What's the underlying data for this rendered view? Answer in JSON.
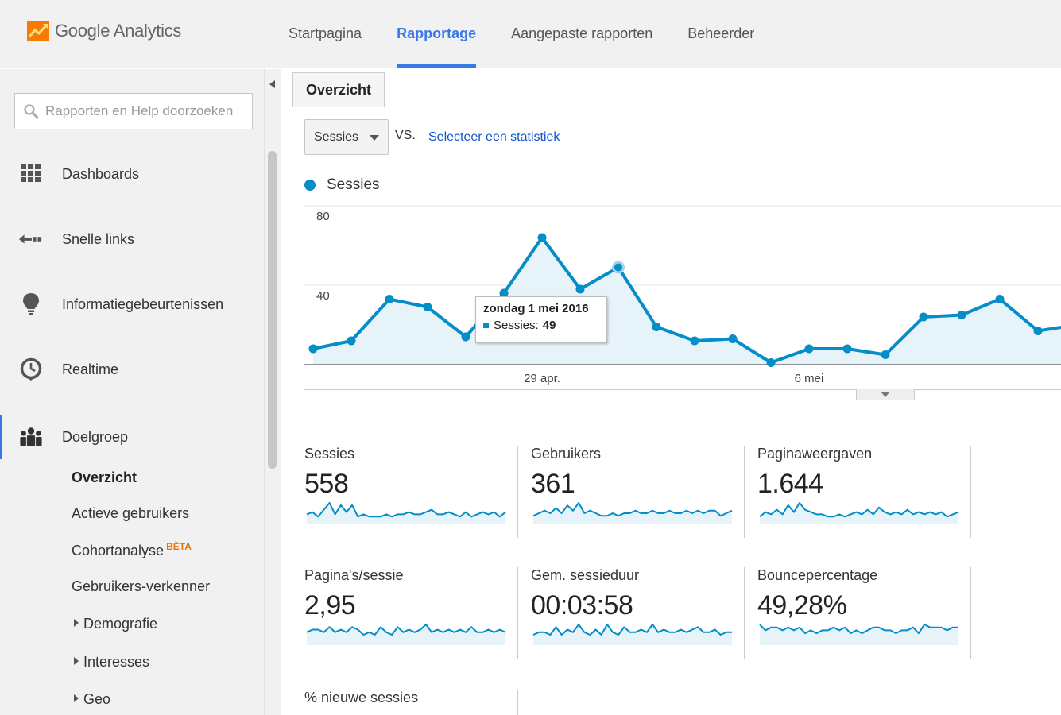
{
  "app": {
    "logo_name": "analytics-logo",
    "title": "Google Analytics",
    "accent": "#3b78e7",
    "series_color": "#058dc7"
  },
  "topnav": {
    "items": [
      {
        "label": "Startpagina"
      },
      {
        "label": "Rapportage",
        "active": true
      },
      {
        "label": "Aangepaste rapporten"
      },
      {
        "label": "Beheerder"
      }
    ]
  },
  "sidebar": {
    "search_placeholder": "Rapporten en Help doorzoeken",
    "items": [
      {
        "icon": "grid-icon",
        "label": "Dashboards"
      },
      {
        "icon": "shortcut-arrow-icon",
        "label": "Snelle links"
      },
      {
        "icon": "lightbulb-icon",
        "label": "Informatiegebeurtenissen"
      },
      {
        "icon": "clock-icon",
        "label": "Realtime"
      },
      {
        "icon": "people-icon",
        "label": "Doelgroep",
        "active": true
      }
    ],
    "sub_items": [
      {
        "label": "Overzicht",
        "selected": true
      },
      {
        "label": "Actieve gebruikers"
      },
      {
        "label": "Cohortanalyse",
        "badge": "BÈTA"
      },
      {
        "label": "Gebruikers-verkenner"
      },
      {
        "label": "Demografie",
        "expandable": true
      },
      {
        "label": "Interesses",
        "expandable": true
      },
      {
        "label": "Geo",
        "expandable": true
      }
    ]
  },
  "main": {
    "tab": "Overzicht",
    "metric_select": "Sessies",
    "vs_label": "VS.",
    "select_metric_link": "Selecteer een statistiek",
    "tooltip": {
      "title": "zondag 1 mei 2016",
      "series": "Sessies:",
      "value": "49"
    }
  },
  "chart_data": {
    "type": "area",
    "series": [
      {
        "name": "Sessies",
        "values": [
          8,
          12,
          33,
          29,
          14,
          36,
          64,
          38,
          49,
          19,
          12,
          13,
          1,
          8,
          8,
          5,
          24,
          25,
          33,
          17,
          20
        ]
      }
    ],
    "x_tick_labels": [
      {
        "index": 6,
        "label": "29 apr."
      },
      {
        "index": 13,
        "label": "6 mei"
      }
    ],
    "y_ticks": [
      "80",
      "40"
    ],
    "ylim": [
      0,
      80
    ],
    "highlight_index": 8,
    "grid": true,
    "legend": "top-left"
  },
  "metrics": [
    {
      "label": "Sessies",
      "value": "558",
      "spark": [
        4,
        5,
        3,
        6,
        9,
        4,
        8,
        5,
        8,
        3,
        4,
        3,
        3,
        3,
        4,
        3,
        4,
        4,
        5,
        4,
        4,
        5,
        6,
        4,
        4,
        5,
        4,
        3,
        5,
        3,
        4,
        5,
        4,
        5,
        3,
        5
      ]
    },
    {
      "label": "Gebruikers",
      "value": "361",
      "spark": [
        3,
        4,
        5,
        4,
        6,
        4,
        7,
        5,
        8,
        4,
        5,
        4,
        3,
        3,
        4,
        3,
        4,
        4,
        5,
        4,
        4,
        5,
        4,
        4,
        5,
        4,
        4,
        5,
        4,
        5,
        4,
        5,
        5,
        3,
        4,
        5
      ]
    },
    {
      "label": "Paginaweergaven",
      "value": "1.644",
      "spark": [
        3,
        5,
        4,
        6,
        4,
        8,
        5,
        9,
        6,
        5,
        4,
        4,
        3,
        3,
        4,
        3,
        4,
        5,
        4,
        6,
        4,
        7,
        5,
        4,
        5,
        4,
        6,
        4,
        5,
        4,
        5,
        4,
        5,
        3,
        4,
        5
      ]
    },
    {
      "label": "Pagina's/sessie",
      "value": "2,95",
      "spark": [
        5,
        6,
        6,
        5,
        7,
        5,
        6,
        5,
        7,
        6,
        4,
        5,
        4,
        7,
        5,
        4,
        7,
        5,
        6,
        5,
        6,
        8,
        5,
        6,
        5,
        6,
        5,
        6,
        5,
        7,
        5,
        5,
        6,
        5,
        6,
        5
      ]
    },
    {
      "label": "Gem. sessieduur",
      "value": "00:03:58",
      "spark": [
        4,
        5,
        5,
        4,
        7,
        4,
        6,
        5,
        8,
        5,
        4,
        6,
        4,
        8,
        5,
        4,
        7,
        5,
        5,
        6,
        5,
        8,
        5,
        6,
        5,
        5,
        6,
        5,
        6,
        7,
        5,
        5,
        6,
        4,
        5,
        5
      ]
    },
    {
      "label": "Bouncepercentage",
      "value": "49,28%",
      "spark": [
        7,
        5,
        6,
        6,
        5,
        6,
        5,
        6,
        4,
        5,
        4,
        5,
        5,
        6,
        5,
        6,
        4,
        5,
        4,
        5,
        6,
        6,
        5,
        5,
        4,
        5,
        5,
        6,
        4,
        7,
        6,
        6,
        6,
        5,
        6,
        6
      ]
    },
    {
      "label": "% nieuwe sessies"
    }
  ]
}
